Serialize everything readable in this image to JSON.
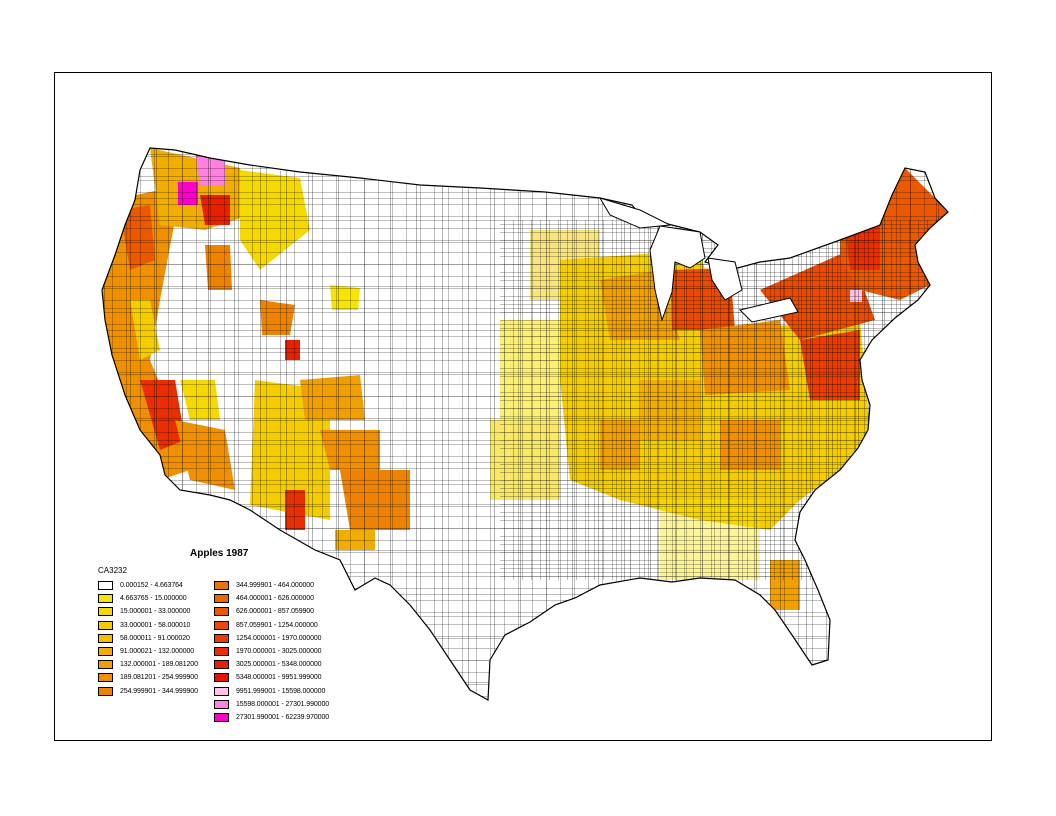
{
  "title": "Apples 1987",
  "field": "CA3232",
  "legend": [
    {
      "label": "0.000152 - 4.663764",
      "color": "#ffffff"
    },
    {
      "label": "4.663765 - 15.000000",
      "color": "#f7e400"
    },
    {
      "label": "15.000001 - 33.000000",
      "color": "#f5d800"
    },
    {
      "label": "33.000001 - 58.000010",
      "color": "#f4cc00"
    },
    {
      "label": "58.000011 - 91.000020",
      "color": "#f3bd00"
    },
    {
      "label": "91.000021 - 132.000000",
      "color": "#f2ae00"
    },
    {
      "label": "132.000001 - 189.081200",
      "color": "#f19f00"
    },
    {
      "label": "189.081201 - 254.999900",
      "color": "#f09000"
    },
    {
      "label": "254.999901 - 344.999900",
      "color": "#ef8200"
    },
    {
      "label": "344.999901 - 464.000000",
      "color": "#ee7400"
    },
    {
      "label": "464.000001 - 626.000000",
      "color": "#ed6600"
    },
    {
      "label": "626.000001 - 857.059900",
      "color": "#ec5800"
    },
    {
      "label": "857.059901 - 1254.000000",
      "color": "#eb4a00"
    },
    {
      "label": "1254.000001 - 1970.000000",
      "color": "#ea3c00"
    },
    {
      "label": "1970.000001 - 3025.000000",
      "color": "#e92e00"
    },
    {
      "label": "3025.000001 - 5348.000000",
      "color": "#e82000"
    },
    {
      "label": "5348.000001 - 9951.999000",
      "color": "#e71200"
    },
    {
      "label": "9951.999001 - 15598.000000",
      "color": "#ffc4e8"
    },
    {
      "label": "15598.000001 - 27301.990000",
      "color": "#ff80e0"
    },
    {
      "label": "27301.990001 - 62239.970000",
      "color": "#ff00cc"
    }
  ]
}
